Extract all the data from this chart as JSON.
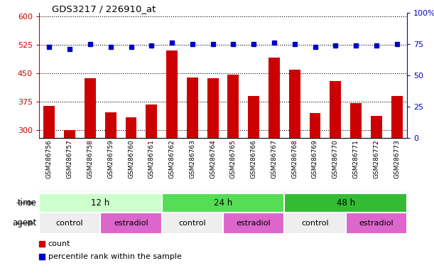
{
  "title": "GDS3217 / 226910_at",
  "samples": [
    "GSM286756",
    "GSM286757",
    "GSM286758",
    "GSM286759",
    "GSM286760",
    "GSM286761",
    "GSM286762",
    "GSM286763",
    "GSM286764",
    "GSM286765",
    "GSM286766",
    "GSM286767",
    "GSM286768",
    "GSM286769",
    "GSM286770",
    "GSM286771",
    "GSM286772",
    "GSM286773"
  ],
  "counts": [
    365,
    300,
    438,
    348,
    335,
    368,
    510,
    440,
    437,
    447,
    390,
    492,
    460,
    345,
    430,
    372,
    338,
    390
  ],
  "percentiles": [
    73,
    71,
    75,
    73,
    73,
    74,
    76,
    75,
    75,
    75,
    75,
    76,
    75,
    73,
    74,
    74,
    74,
    75
  ],
  "ylim_left": [
    280,
    610
  ],
  "ylim_right": [
    0,
    100
  ],
  "yticks_left": [
    300,
    375,
    450,
    525,
    600
  ],
  "yticks_right": [
    0,
    25,
    50,
    75,
    100
  ],
  "bar_color": "#cc0000",
  "dot_color": "#0000cc",
  "bar_width": 0.55,
  "time_groups": [
    {
      "label": "12 h",
      "start": 0,
      "end": 6,
      "color": "#ccffcc"
    },
    {
      "label": "24 h",
      "start": 6,
      "end": 12,
      "color": "#55dd55"
    },
    {
      "label": "48 h",
      "start": 12,
      "end": 18,
      "color": "#33bb33"
    }
  ],
  "agent_groups": [
    {
      "label": "control",
      "start": 0,
      "end": 3,
      "color": "#eeeeee"
    },
    {
      "label": "estradiol",
      "start": 3,
      "end": 6,
      "color": "#dd66cc"
    },
    {
      "label": "control",
      "start": 6,
      "end": 9,
      "color": "#eeeeee"
    },
    {
      "label": "estradiol",
      "start": 9,
      "end": 12,
      "color": "#dd66cc"
    },
    {
      "label": "control",
      "start": 12,
      "end": 15,
      "color": "#eeeeee"
    },
    {
      "label": "estradiol",
      "start": 15,
      "end": 18,
      "color": "#dd66cc"
    }
  ],
  "legend_count_label": "count",
  "legend_pct_label": "percentile rank within the sample",
  "time_label": "time",
  "agent_label": "agent",
  "grid_color": "#000000",
  "bg_color": "#ffffff",
  "tick_label_color_left": "#cc0000",
  "tick_label_color_right": "#0000cc",
  "xtick_bg": "#cccccc"
}
